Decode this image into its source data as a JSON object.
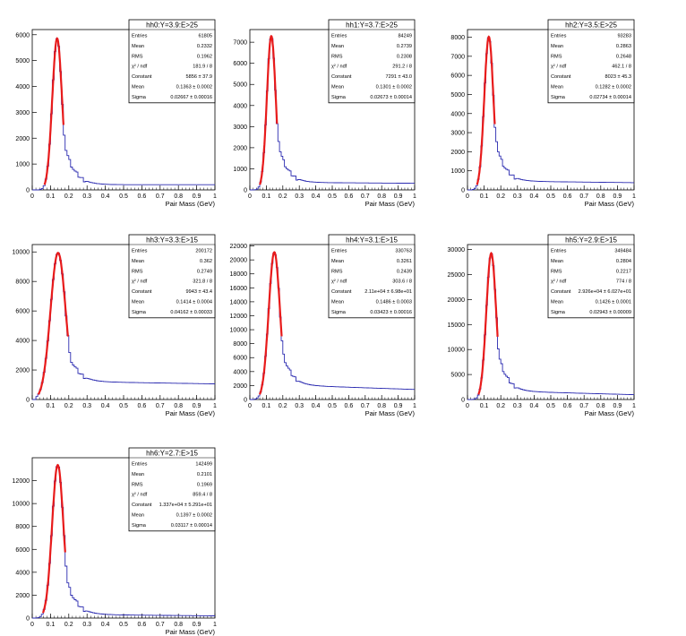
{
  "colors": {
    "histogram": "#2b2bb0",
    "fit": "#e81b1b",
    "frame": "#000000"
  },
  "chart_data": [
    {
      "type": "line",
      "name": "hh0",
      "title": "hh0:Y=3.9:E>25",
      "xlabel": "Pair Mass (GeV)",
      "ylabel": "",
      "xlim": [
        0,
        1
      ],
      "ylim": [
        0,
        6200
      ],
      "yticks": [
        0,
        1000,
        2000,
        3000,
        4000,
        5000,
        6000
      ],
      "xticks": [
        0,
        0.1,
        0.2,
        0.3,
        0.4,
        0.5,
        0.6,
        0.7,
        0.8,
        0.9,
        1
      ],
      "peak": 5950,
      "tail_height": 200,
      "tail_slope": 0,
      "stats": [
        {
          "label": "Entries",
          "value": "61805"
        },
        {
          "label": "Mean",
          "value": "0.2332"
        },
        {
          "label": "RMS",
          "value": "0.1962"
        },
        {
          "label": "χ² / ndf",
          "value": "181.9 / 8"
        },
        {
          "label": "Constant",
          "value": "5856 ± 37.9"
        },
        {
          "label": "Mean",
          "value": "0.1363 ± 0.0002"
        },
        {
          "label": "Sigma",
          "value": "0.02667 ± 0.00016"
        }
      ],
      "fit": {
        "constant": 5856,
        "mean": 0.1363,
        "sigma": 0.02667
      }
    },
    {
      "type": "line",
      "name": "hh1",
      "title": "hh1:Y=3.7:E>25",
      "xlabel": "Pair Mass (GeV)",
      "ylabel": "",
      "xlim": [
        0,
        1
      ],
      "ylim": [
        0,
        7600
      ],
      "yticks": [
        0,
        1000,
        2000,
        3000,
        4000,
        5000,
        6000,
        7000
      ],
      "xticks": [
        0,
        0.1,
        0.2,
        0.3,
        0.4,
        0.5,
        0.6,
        0.7,
        0.8,
        0.9,
        1
      ],
      "peak": 7350,
      "tail_height": 350,
      "tail_slope": -50,
      "stats": [
        {
          "label": "Entries",
          "value": "84249"
        },
        {
          "label": "Mean",
          "value": "0.2739"
        },
        {
          "label": "RMS",
          "value": "0.2308"
        },
        {
          "label": "χ² / ndf",
          "value": "291.2 / 8"
        },
        {
          "label": "Constant",
          "value": "7291 ± 43.0"
        },
        {
          "label": "Mean",
          "value": "0.1301 ± 0.0002"
        },
        {
          "label": "Sigma",
          "value": "0.02673 ± 0.00014"
        }
      ],
      "fit": {
        "constant": 7291,
        "mean": 0.1301,
        "sigma": 0.02673
      }
    },
    {
      "type": "line",
      "name": "hh2",
      "title": "hh2:Y=3.5:E>25",
      "xlabel": "Pair Mass (GeV)",
      "ylabel": "",
      "xlim": [
        0,
        1
      ],
      "ylim": [
        0,
        8400
      ],
      "yticks": [
        0,
        1000,
        2000,
        3000,
        4000,
        5000,
        6000,
        7000,
        8000
      ],
      "xticks": [
        0,
        0.1,
        0.2,
        0.3,
        0.4,
        0.5,
        0.6,
        0.7,
        0.8,
        0.9,
        1
      ],
      "peak": 8000,
      "tail_height": 450,
      "tail_slope": -100,
      "stats": [
        {
          "label": "Entries",
          "value": "93283"
        },
        {
          "label": "Mean",
          "value": "0.2863"
        },
        {
          "label": "RMS",
          "value": "0.2648"
        },
        {
          "label": "χ² / ndf",
          "value": "462.1 / 8"
        },
        {
          "label": "Constant",
          "value": "8023 ± 45.3"
        },
        {
          "label": "Mean",
          "value": "0.1282 ± 0.0002"
        },
        {
          "label": "Sigma",
          "value": "0.02734 ± 0.00014"
        }
      ],
      "fit": {
        "constant": 8023,
        "mean": 0.1282,
        "sigma": 0.02734
      }
    },
    {
      "type": "line",
      "name": "hh3",
      "title": "hh3:Y=3.3:E>15",
      "xlabel": "Pair Mass (GeV)",
      "ylabel": "",
      "xlim": [
        0,
        1
      ],
      "ylim": [
        0,
        10500
      ],
      "yticks": [
        0,
        2000,
        4000,
        6000,
        8000,
        10000
      ],
      "xticks": [
        0,
        0.1,
        0.2,
        0.3,
        0.4,
        0.5,
        0.6,
        0.7,
        0.8,
        0.9,
        1
      ],
      "peak": 9900,
      "tail_height": 1200,
      "tail_slope": -200,
      "stats": [
        {
          "label": "Entries",
          "value": "200172"
        },
        {
          "label": "Mean",
          "value": "0.362"
        },
        {
          "label": "RMS",
          "value": "0.2749"
        },
        {
          "label": "χ² / ndf",
          "value": "321.8 / 8"
        },
        {
          "label": "Constant",
          "value": "9943 ± 43.4"
        },
        {
          "label": "Mean",
          "value": "0.1414 ± 0.0004"
        },
        {
          "label": "Sigma",
          "value": "0.04162 ± 0.00033"
        }
      ],
      "fit": {
        "constant": 9943,
        "mean": 0.1414,
        "sigma": 0.04162
      }
    },
    {
      "type": "line",
      "name": "hh4",
      "title": "hh4:Y=3.1:E>15",
      "xlabel": "Pair Mass (GeV)",
      "ylabel": "",
      "xlim": [
        0,
        1
      ],
      "ylim": [
        0,
        22200
      ],
      "yticks": [
        0,
        2000,
        4000,
        6000,
        8000,
        10000,
        12000,
        14000,
        16000,
        18000,
        20000,
        22000
      ],
      "xticks": [
        0,
        0.1,
        0.2,
        0.3,
        0.4,
        0.5,
        0.6,
        0.7,
        0.8,
        0.9,
        1
      ],
      "peak": 21000,
      "tail_height": 2000,
      "tail_slope": -800,
      "stats": [
        {
          "label": "Entries",
          "value": "330763"
        },
        {
          "label": "Mean",
          "value": "0.3261"
        },
        {
          "label": "RMS",
          "value": "0.2439"
        },
        {
          "label": "χ² / ndf",
          "value": "303.6 / 8"
        },
        {
          "label": "Constant",
          "value": "2.11e+04 ± 6.98e+01"
        },
        {
          "label": "Mean",
          "value": "0.1486 ± 0.0003"
        },
        {
          "label": "Sigma",
          "value": "0.03423 ± 0.00016"
        }
      ],
      "fit": {
        "constant": 21100,
        "mean": 0.1486,
        "sigma": 0.03423
      }
    },
    {
      "type": "line",
      "name": "hh5",
      "title": "hh5:Y=2.9:E>15",
      "xlabel": "Pair Mass (GeV)",
      "ylabel": "",
      "xlim": [
        0,
        1
      ],
      "ylim": [
        0,
        31000
      ],
      "yticks": [
        0,
        5000,
        10000,
        15000,
        20000,
        25000,
        30000
      ],
      "xticks": [
        0,
        0.1,
        0.2,
        0.3,
        0.4,
        0.5,
        0.6,
        0.7,
        0.8,
        0.9,
        1
      ],
      "peak": 29000,
      "tail_height": 1600,
      "tail_slope": -900,
      "stats": [
        {
          "label": "Entries",
          "value": "349484"
        },
        {
          "label": "Mean",
          "value": "0.2804"
        },
        {
          "label": "RMS",
          "value": "0.2217"
        },
        {
          "label": "χ² / ndf",
          "value": "774 / 8"
        },
        {
          "label": "Constant",
          "value": "2.926e+04 ± 6.027e+01"
        },
        {
          "label": "Mean",
          "value": "0.1426 ± 0.0001"
        },
        {
          "label": "Sigma",
          "value": "0.02943 ± 0.00009"
        }
      ],
      "fit": {
        "constant": 29260,
        "mean": 0.1426,
        "sigma": 0.02943
      }
    },
    {
      "type": "line",
      "name": "hh6",
      "title": "hh6:Y=2.7:E>15",
      "xlabel": "Pair Mass (GeV)",
      "ylabel": "",
      "xlim": [
        0,
        1
      ],
      "ylim": [
        0,
        14000
      ],
      "yticks": [
        0,
        2000,
        4000,
        6000,
        8000,
        10000,
        12000
      ],
      "xticks": [
        0,
        0.1,
        0.2,
        0.3,
        0.4,
        0.5,
        0.6,
        0.7,
        0.8,
        0.9,
        1
      ],
      "peak": 13400,
      "tail_height": 300,
      "tail_slope": -150,
      "stats": [
        {
          "label": "Entries",
          "value": "142499"
        },
        {
          "label": "Mean",
          "value": "0.2101"
        },
        {
          "label": "RMS",
          "value": "0.1969"
        },
        {
          "label": "χ² / ndf",
          "value": "859.4 / 8"
        },
        {
          "label": "Constant",
          "value": "1.337e+04 ± 5.291e+01"
        },
        {
          "label": "Mean",
          "value": "0.1397 ± 0.0002"
        },
        {
          "label": "Sigma",
          "value": "0.03117 ± 0.00014"
        }
      ],
      "fit": {
        "constant": 13370,
        "mean": 0.1397,
        "sigma": 0.03117
      }
    }
  ]
}
